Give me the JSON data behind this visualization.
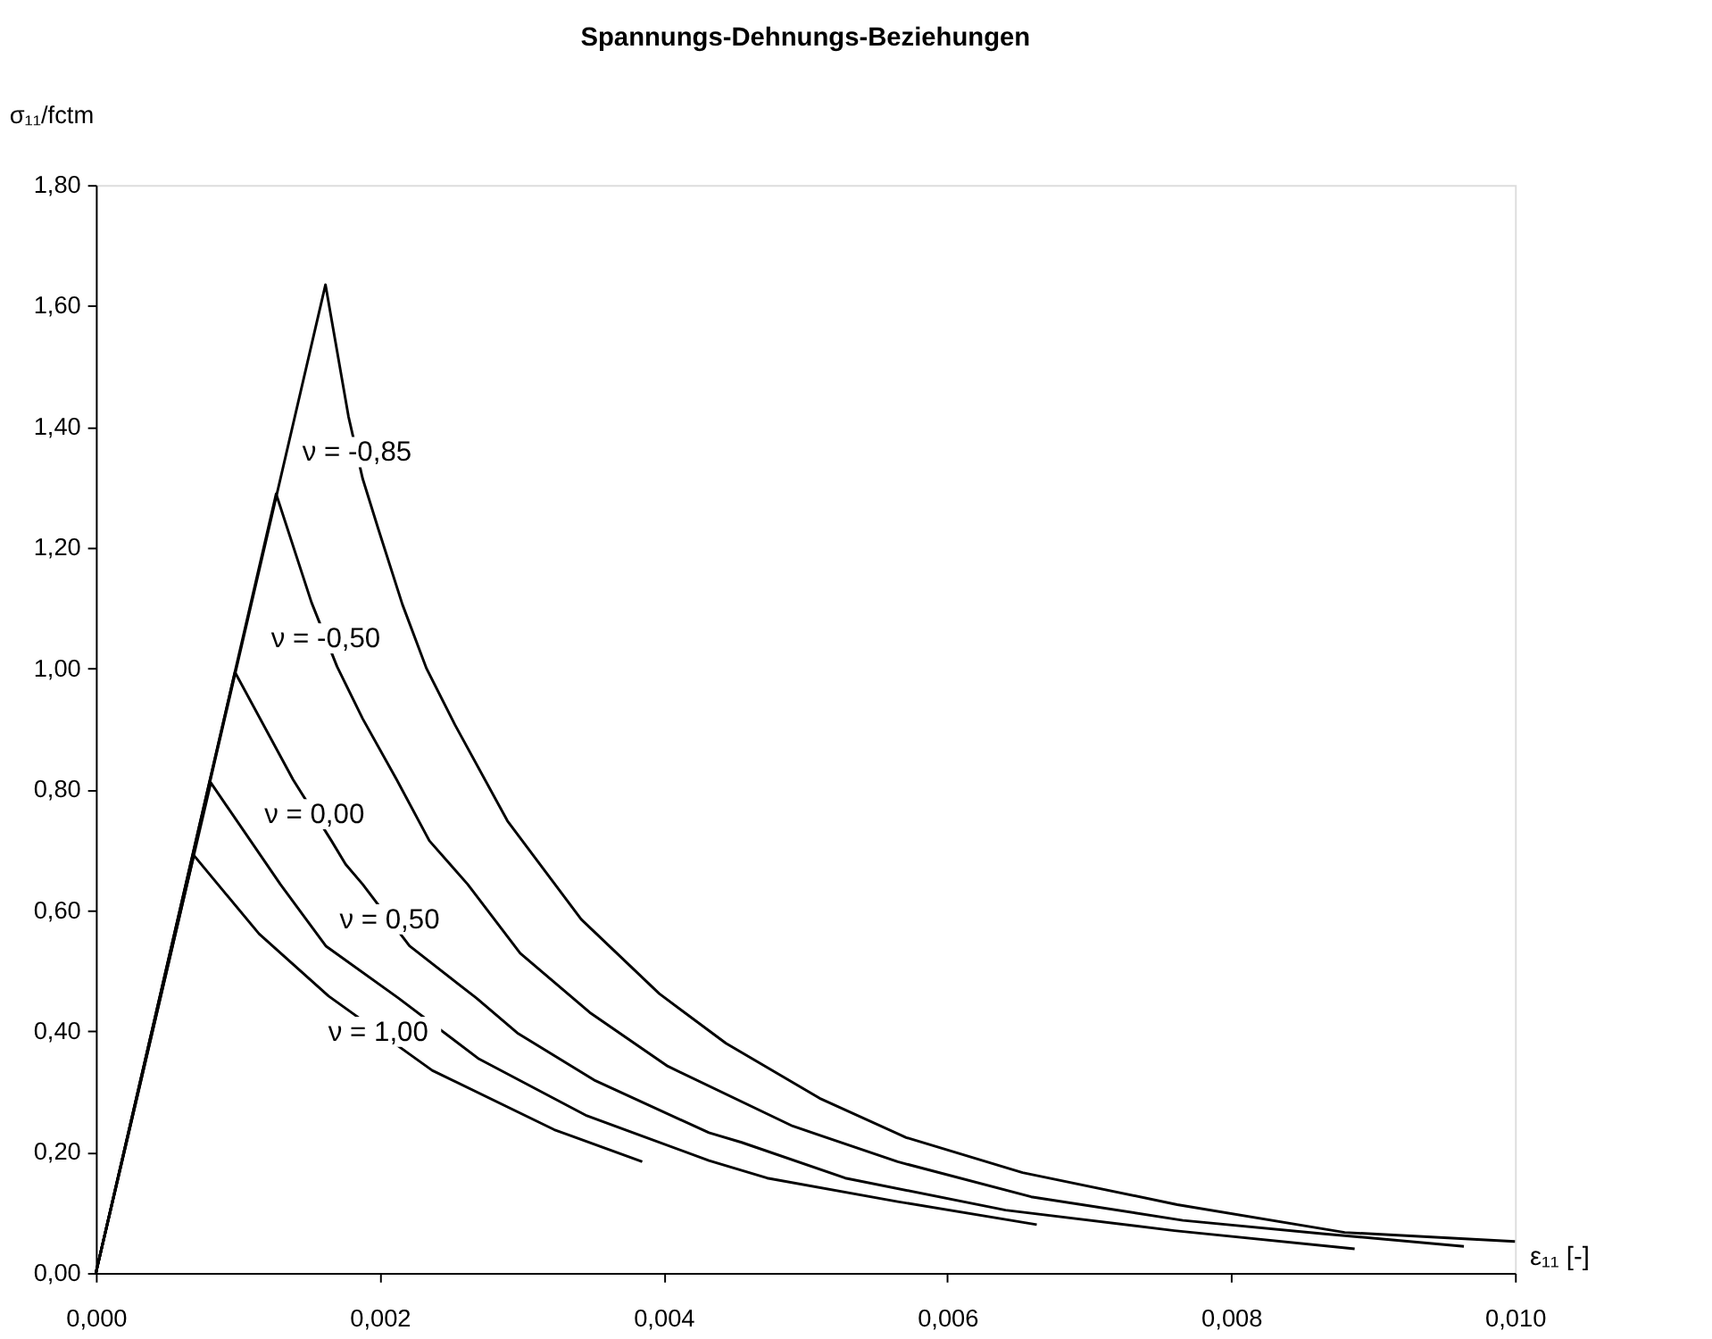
{
  "chart_data": {
    "type": "line",
    "title": "Spannungs-Dehnungs-Beziehungen",
    "xlabel": "ε₁₁ [-]",
    "ylabel": "σ₁₁/fctm",
    "xlim": [
      0,
      0.01
    ],
    "ylim": [
      0,
      1.8
    ],
    "xticks": [
      {
        "value": 0,
        "label": "0,000"
      },
      {
        "value": 0.002,
        "label": "0,002"
      },
      {
        "value": 0.004,
        "label": "0,004"
      },
      {
        "value": 0.006,
        "label": "0,006"
      },
      {
        "value": 0.008,
        "label": "0,008"
      },
      {
        "value": 0.01,
        "label": "0,010"
      }
    ],
    "yticks": [
      {
        "value": 0,
        "label": "0,00"
      },
      {
        "value": 0.2,
        "label": "0,20"
      },
      {
        "value": 0.4,
        "label": "0,40"
      },
      {
        "value": 0.6,
        "label": "0,60"
      },
      {
        "value": 0.8,
        "label": "0,80"
      },
      {
        "value": 1.0,
        "label": "1,00"
      },
      {
        "value": 1.2,
        "label": "1,20"
      },
      {
        "value": 1.4,
        "label": "1,40"
      },
      {
        "value": 1.6,
        "label": "1,60"
      },
      {
        "value": 1.8,
        "label": "1,80"
      }
    ],
    "grid": false,
    "marker": "none",
    "line_style": "solid",
    "series": [
      {
        "color": "#000000",
        "x": [
          0,
          0.001618,
          0.00178,
          0.00188,
          0.00199,
          0.00216,
          0.00233,
          0.00253,
          0.0029,
          0.00342,
          0.00397,
          0.00444,
          0.0051,
          0.00571,
          0.00653,
          0.00762,
          0.0088,
          0.01
        ],
        "values": [
          0,
          1.635,
          1.417,
          1.314,
          1.231,
          1.106,
          1.0,
          0.907,
          0.748,
          0.585,
          0.462,
          0.38,
          0.289,
          0.224,
          0.166,
          0.113,
          0.067,
          0.052
        ]
      },
      {
        "color": "#000000",
        "x": [
          0,
          0.00127,
          0.00152,
          0.0017,
          0.00188,
          0.00212,
          0.00235,
          0.00262,
          0.00299,
          0.00348,
          0.00403,
          0.00491,
          0.00565,
          0.00659,
          0.00766,
          0.00864,
          0.00964
        ],
        "values": [
          0,
          1.289,
          1.109,
          1.003,
          0.917,
          0.816,
          0.715,
          0.643,
          0.529,
          0.431,
          0.342,
          0.243,
          0.184,
          0.126,
          0.087,
          0.065,
          0.044
        ]
      },
      {
        "color": "#000000",
        "x": [
          0,
          0.00098,
          0.00139,
          0.00166,
          0.00176,
          0.00188,
          0.00221,
          0.00268,
          0.00297,
          0.00352,
          0.00432,
          0.00455,
          0.00528,
          0.00641,
          0.0076,
          0.00887
        ],
        "values": [
          0,
          0.994,
          0.816,
          0.715,
          0.676,
          0.643,
          0.541,
          0.455,
          0.397,
          0.318,
          0.232,
          0.216,
          0.157,
          0.104,
          0.07,
          0.04
        ]
      },
      {
        "color": "#000000",
        "x": [
          0,
          0.00081,
          0.0013,
          0.00162,
          0.00213,
          0.0027,
          0.00346,
          0.00432,
          0.00473,
          0.00565,
          0.00663
        ],
        "values": [
          0,
          0.811,
          0.643,
          0.541,
          0.455,
          0.354,
          0.26,
          0.186,
          0.157,
          0.118,
          0.08
        ]
      },
      {
        "color": "#000000",
        "x": [
          0,
          0.00069,
          0.00115,
          0.00164,
          0.00237,
          0.00323,
          0.00385
        ],
        "values": [
          0,
          0.691,
          0.561,
          0.458,
          0.335,
          0.237,
          0.184
        ]
      }
    ],
    "annotations": [
      {
        "text": "ν = -0,85",
        "x": 0.00184,
        "y": 1.358
      },
      {
        "text": "ν = -0,50",
        "x": 0.00162,
        "y": 1.05
      },
      {
        "text": "ν = 0,00",
        "x": 0.00154,
        "y": 0.759
      },
      {
        "text": "ν = 0,50",
        "x": 0.00207,
        "y": 0.585
      },
      {
        "text": "ν = 1,00",
        "x": 0.00199,
        "y": 0.399
      }
    ]
  }
}
